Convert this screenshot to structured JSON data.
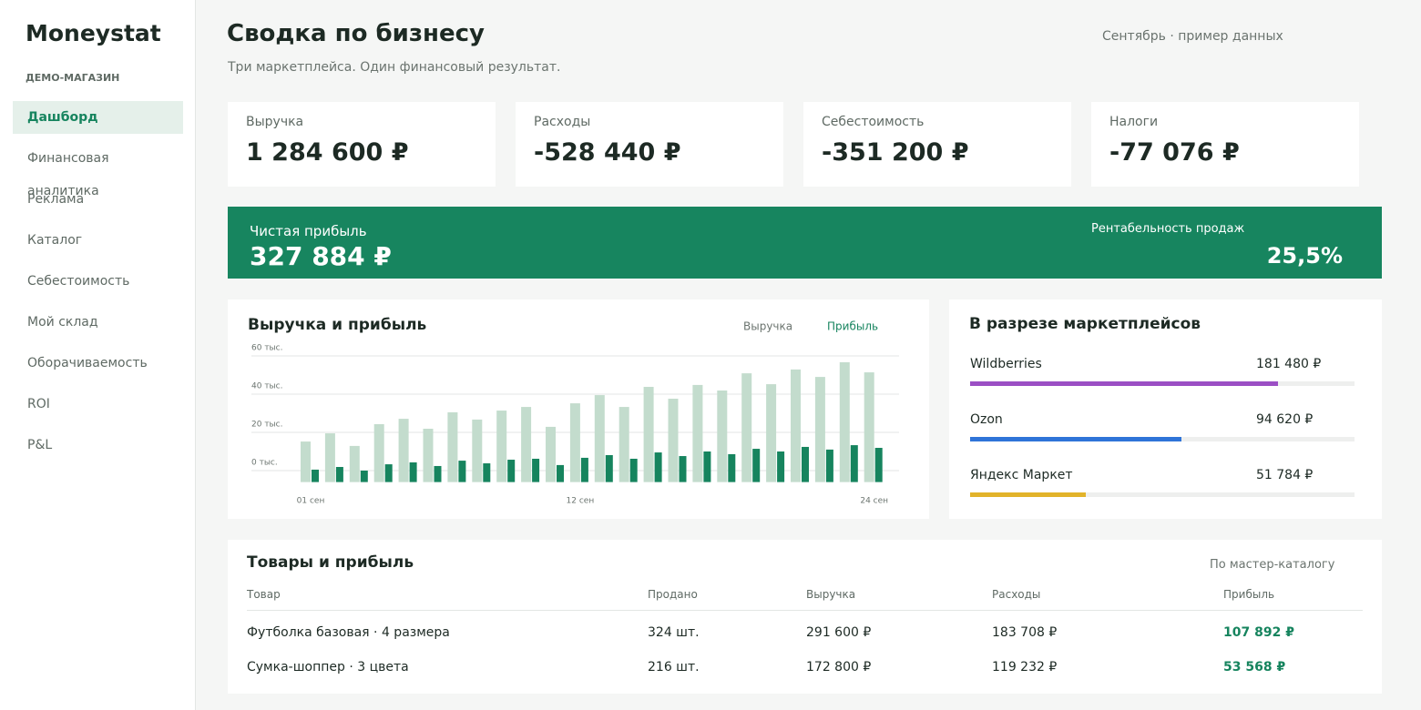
{
  "brand": "Moneystat",
  "store": "ДЕМО-МАГАЗИН",
  "nav": {
    "items": [
      "Дашборд",
      "Финансовая аналитика",
      "Реклама",
      "Каталог",
      "Себестоимость",
      "Мой склад",
      "Оборачиваемость",
      "ROI",
      "P&L"
    ],
    "active": 0
  },
  "header": {
    "title": "Сводка по бизнесу",
    "subtitle": "Три маркетплейса. Один финансовый результат.",
    "period": "Сентябрь · пример данных"
  },
  "kpis": [
    {
      "label": "Выручка",
      "value": "1 284 600 ₽"
    },
    {
      "label": "Расходы",
      "value": "-528 440 ₽"
    },
    {
      "label": "Себестоимость",
      "value": "-351 200 ₽"
    },
    {
      "label": "Налоги",
      "value": "-77 076 ₽"
    }
  ],
  "profit": {
    "label": "Чистая прибыль",
    "value": "327 884 ₽",
    "margin_label": "Рентабельность продаж",
    "margin": "25,5%"
  },
  "chart_data": {
    "type": "bar",
    "title": "Выручка и прибыль",
    "categories": [
      "01 сен",
      null,
      null,
      null,
      null,
      null,
      null,
      null,
      null,
      null,
      null,
      "12 сен",
      null,
      null,
      null,
      null,
      null,
      null,
      null,
      null,
      null,
      null,
      null,
      "24 сен"
    ],
    "series": [
      {
        "name": "Выручка",
        "color": "#c3dccd",
        "values": [
          15200,
          19500,
          12900,
          24300,
          27100,
          21900,
          30500,
          26700,
          31400,
          33300,
          22900,
          35200,
          39500,
          33300,
          43800,
          37600,
          44800,
          41900,
          50900,
          45200,
          52900,
          49000,
          56700,
          51400
        ]
      },
      {
        "name": "Прибыль",
        "color": "#16845e",
        "values": [
          500,
          1900,
          0,
          3300,
          4300,
          2400,
          5200,
          3800,
          5700,
          6200,
          2900,
          6700,
          8100,
          6200,
          9500,
          7600,
          10000,
          8600,
          11400,
          10000,
          12400,
          11000,
          13300,
          11900
        ]
      }
    ],
    "ylim": [
      -6000,
      60000
    ],
    "yticks": [
      {
        "value": 0,
        "label": "0 тыс."
      },
      {
        "value": 20000,
        "label": "20 тыс."
      },
      {
        "value": 40000,
        "label": "40 тыс."
      },
      {
        "value": 60000,
        "label": "60 тыс."
      }
    ],
    "grid": true
  },
  "marketplaces": {
    "title": "В разрезе маркетплейсов",
    "items": [
      {
        "name": "Wildberries",
        "value": "181 480 ₽",
        "share": 80,
        "color": "#9b4fc4"
      },
      {
        "name": "Ozon",
        "value": "94 620 ₽",
        "share": 55,
        "color": "#2f74d8"
      },
      {
        "name": "Яндекс Маркет",
        "value": "51 784 ₽",
        "share": 30,
        "color": "#e2b32a"
      }
    ]
  },
  "table": {
    "title": "Товары и прибыль",
    "note": "По мастер-каталогу",
    "columns": [
      "Товар",
      "Продано",
      "Выручка",
      "Расходы",
      "Прибыль"
    ],
    "rows": [
      [
        "Футболка базовая · 4 размера",
        "324 шт.",
        "291 600 ₽",
        "183 708 ₽",
        "107 892 ₽"
      ],
      [
        "Сумка-шоппер · 3 цвета",
        "216 шт.",
        "172 800 ₽",
        "119 232 ₽",
        "53 568 ₽"
      ]
    ]
  }
}
